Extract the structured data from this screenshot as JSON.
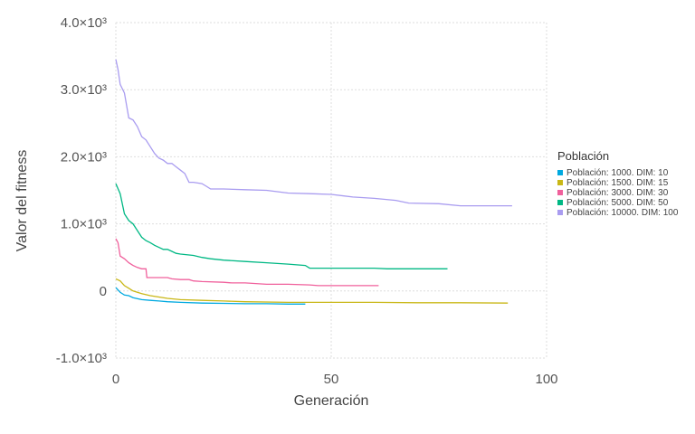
{
  "chart_data": {
    "type": "line",
    "title": "",
    "xlabel": "Generación",
    "ylabel": "Valor del fitness",
    "xlim": [
      0,
      100
    ],
    "ylim": [
      -1000,
      4000
    ],
    "xticks": [
      0,
      50,
      100
    ],
    "xtick_labels": [
      "0",
      "50",
      "100"
    ],
    "yticks": [
      -1000,
      0,
      1000,
      2000,
      3000,
      4000
    ],
    "ytick_labels": [
      "-1.0×10³",
      "0",
      "1.0×10³",
      "2.0×10³",
      "3.0×10³",
      "4.0×10³"
    ],
    "grid": true,
    "legend": {
      "title": "Población",
      "position": "right"
    },
    "series": [
      {
        "name": "Población: 1000. DIM: 10",
        "color": "#00a9e0",
        "x": [
          0,
          1,
          2,
          3,
          4,
          6,
          8,
          10,
          12,
          15,
          20,
          25,
          30,
          35,
          40,
          44
        ],
        "y": [
          50,
          -20,
          -60,
          -70,
          -100,
          -130,
          -140,
          -150,
          -160,
          -170,
          -180,
          -185,
          -190,
          -190,
          -195,
          -195
        ]
      },
      {
        "name": "Población: 1500. DIM: 15",
        "color": "#c9b716",
        "x": [
          0,
          1,
          2,
          3,
          4,
          6,
          8,
          10,
          12,
          15,
          20,
          25,
          30,
          40,
          50,
          60,
          70,
          80,
          91
        ],
        "y": [
          180,
          150,
          80,
          40,
          0,
          -40,
          -70,
          -90,
          -110,
          -130,
          -140,
          -150,
          -160,
          -170,
          -170,
          -170,
          -175,
          -175,
          -180
        ]
      },
      {
        "name": "Población: 3000. DIM: 30",
        "color": "#f0609c",
        "x": [
          0,
          0.5,
          1,
          2,
          3,
          4,
          5,
          6,
          7,
          7.2,
          10,
          12,
          13,
          15,
          17,
          18,
          20,
          25,
          27,
          30,
          35,
          40,
          45,
          47,
          50,
          55,
          61
        ],
        "y": [
          780,
          720,
          520,
          480,
          420,
          380,
          350,
          330,
          330,
          200,
          200,
          200,
          180,
          170,
          170,
          150,
          140,
          130,
          120,
          120,
          100,
          100,
          90,
          80,
          80,
          80,
          80
        ]
      },
      {
        "name": "Población: 5000. DIM: 50",
        "color": "#00b884",
        "x": [
          0,
          1,
          2,
          3,
          4,
          5,
          6,
          7,
          8,
          9,
          10,
          11,
          12,
          13,
          14,
          15,
          18,
          20,
          22,
          25,
          30,
          35,
          40,
          44,
          45,
          50,
          55,
          60,
          63,
          70,
          77
        ],
        "y": [
          1600,
          1450,
          1150,
          1050,
          1000,
          900,
          800,
          750,
          720,
          680,
          650,
          620,
          620,
          590,
          560,
          550,
          530,
          500,
          480,
          460,
          440,
          420,
          400,
          380,
          340,
          340,
          340,
          340,
          330,
          330,
          330
        ]
      },
      {
        "name": "Población: 10000. DIM: 100",
        "color": "#a99cf0",
        "x": [
          0,
          0.5,
          1,
          2,
          3,
          4,
          5,
          6,
          7,
          8,
          9,
          10,
          11,
          12,
          13,
          14,
          15,
          16,
          17,
          18,
          20,
          21,
          22,
          25,
          30,
          35,
          40,
          45,
          50,
          55,
          60,
          65,
          68,
          75,
          80,
          85,
          92
        ],
        "y": [
          3450,
          3300,
          3080,
          2950,
          2580,
          2550,
          2450,
          2300,
          2250,
          2150,
          2050,
          1980,
          1950,
          1900,
          1900,
          1850,
          1800,
          1750,
          1620,
          1620,
          1600,
          1560,
          1520,
          1520,
          1510,
          1500,
          1460,
          1450,
          1440,
          1400,
          1380,
          1350,
          1310,
          1300,
          1270,
          1270,
          1270
        ]
      }
    ]
  }
}
